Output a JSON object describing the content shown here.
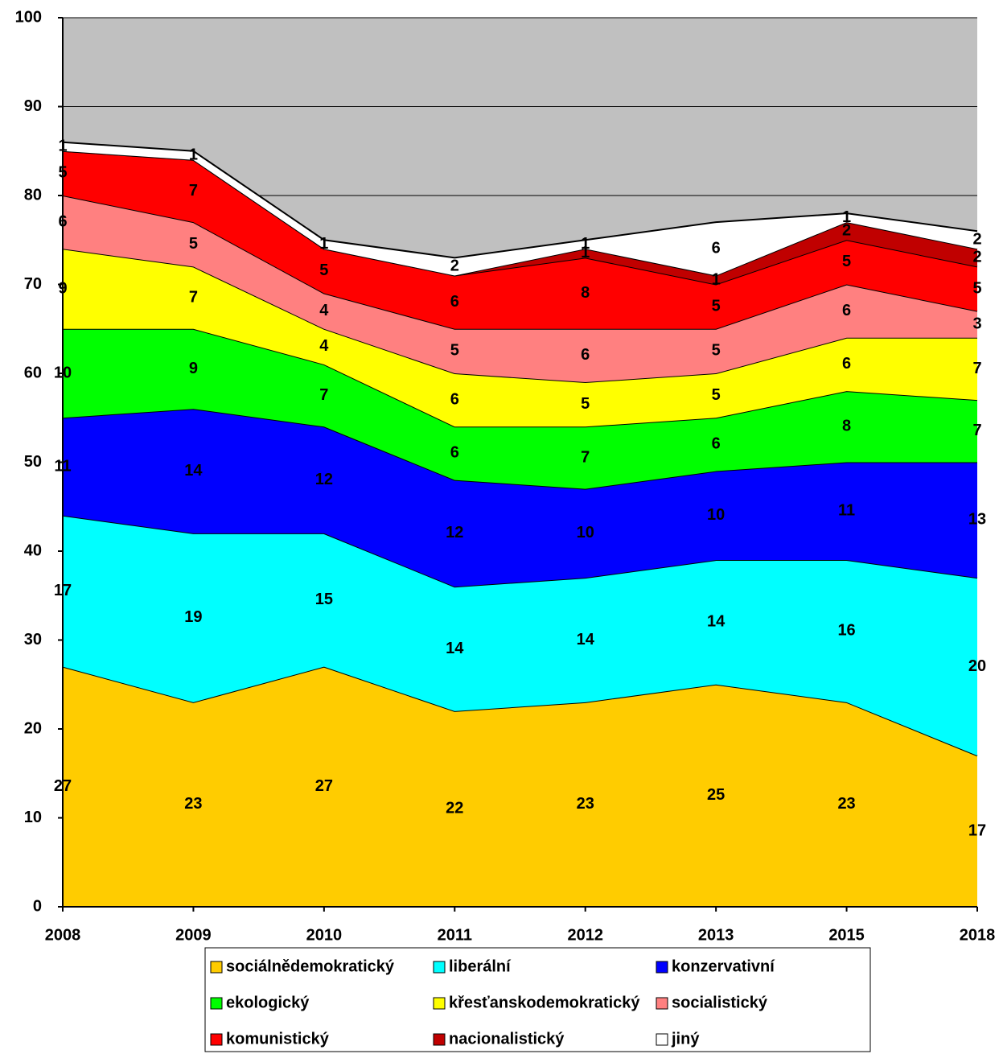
{
  "chart_data": {
    "type": "stacked_area",
    "categories": [
      "2008",
      "2009",
      "2010",
      "2011",
      "2012",
      "2013",
      "2015",
      "2018"
    ],
    "series": [
      {
        "name": "sociálnědemokratický",
        "color": "#FFCC00",
        "values": [
          27,
          23,
          27,
          22,
          23,
          25,
          23,
          17
        ]
      },
      {
        "name": "liberální",
        "color": "#00FFFF",
        "values": [
          17,
          19,
          15,
          14,
          14,
          14,
          16,
          20
        ]
      },
      {
        "name": "konzervativní",
        "color": "#0000FF",
        "values": [
          11,
          14,
          12,
          12,
          10,
          10,
          11,
          13
        ]
      },
      {
        "name": "ekologický",
        "color": "#00FF00",
        "values": [
          10,
          9,
          7,
          6,
          7,
          6,
          8,
          7
        ]
      },
      {
        "name": "křesťanskodemokratický",
        "color": "#FFFF00",
        "values": [
          9,
          7,
          4,
          6,
          5,
          5,
          6,
          7
        ]
      },
      {
        "name": "socialistický",
        "color": "#FF8080",
        "values": [
          6,
          5,
          4,
          5,
          6,
          5,
          6,
          3
        ]
      },
      {
        "name": "komunistický",
        "color": "#FF0000",
        "values": [
          5,
          7,
          5,
          6,
          8,
          5,
          5,
          5
        ]
      },
      {
        "name": "nacionalistický",
        "color": "#C00000",
        "values": [
          0,
          0,
          0,
          0,
          1,
          1,
          2,
          2
        ]
      },
      {
        "name": "jiný",
        "color": "#FFFFFF",
        "values": [
          1,
          1,
          1,
          2,
          1,
          6,
          1,
          2
        ]
      }
    ],
    "ylim": [
      0,
      100
    ],
    "yticks": [
      0,
      10,
      20,
      30,
      40,
      50,
      60,
      70,
      80,
      90,
      100
    ],
    "grid": true,
    "plot_background": "#C0C0C0",
    "legend": "bottom"
  }
}
